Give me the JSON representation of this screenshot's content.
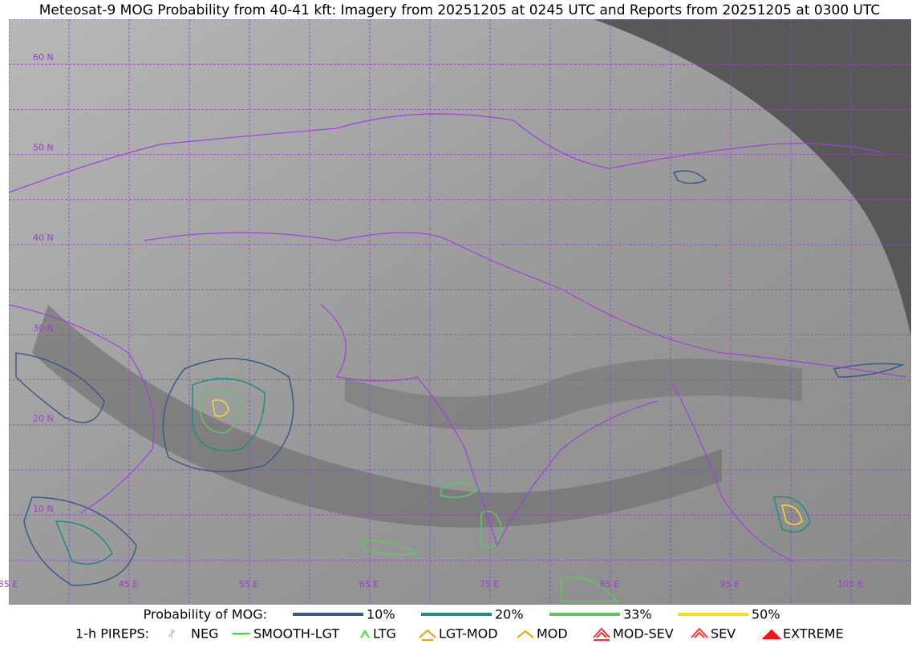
{
  "header": {
    "title": "Meteosat-9 MOG Probability from 40-41 kft: Imagery from 20251205 at 0245 UTC and Reports from 20251205 at 0300 UTC"
  },
  "map": {
    "lat_labels": [
      "60 N",
      "50 N",
      "40 N",
      "30 N",
      "20 N",
      "10 N"
    ],
    "lon_labels": [
      "35 E",
      "45 E",
      "55 E",
      "65 E",
      "75 E",
      "85 E",
      "95 E",
      "105 E"
    ]
  },
  "legend": {
    "probability": {
      "label": "Probability of MOG:",
      "items": [
        "10%",
        "20%",
        "33%",
        "50%"
      ]
    },
    "pireps": {
      "label": "1-h PIREPS:",
      "items": [
        "NEG",
        "SMOOTH-LGT",
        "LTG",
        "LGT-MOD",
        "MOD",
        "MOD-SEV",
        "SEV",
        "EXTREME"
      ]
    }
  }
}
